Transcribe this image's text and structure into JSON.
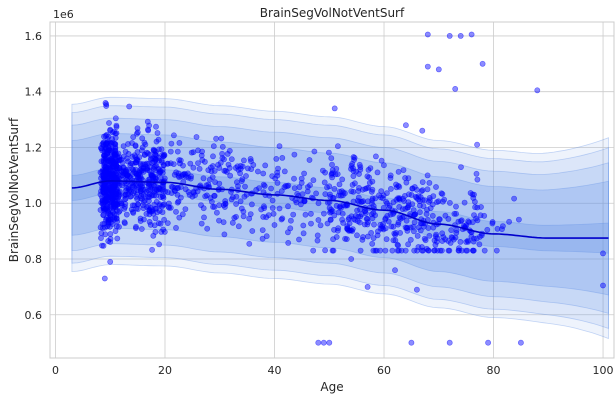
{
  "chart_data": {
    "type": "scatter",
    "title": "BrainSegVolNotVentSurf",
    "xlabel": "Age",
    "ylabel": "BrainSegVolNotVentSurf",
    "y_offset_label": "1e6",
    "xlim": [
      -1,
      102
    ],
    "ylim": [
      0.445,
      1.65
    ],
    "x_ticks": [
      0,
      20,
      40,
      60,
      80,
      100
    ],
    "y_ticks": [
      0.6,
      0.8,
      1.0,
      1.2,
      1.4,
      1.6
    ],
    "x_tick_labels": [
      "0",
      "20",
      "40",
      "60",
      "80",
      "100"
    ],
    "y_tick_labels": [
      "0.6",
      "0.8",
      "1.0",
      "1.2",
      "1.4",
      "1.6"
    ],
    "grid": true,
    "colors": {
      "points": "#0000ff",
      "mean_line": "#0000cc",
      "inner_band": "#6f9be8",
      "outer_band": "#bcd0f5"
    },
    "mean_curve": {
      "x": [
        3,
        10,
        20,
        30,
        40,
        50,
        60,
        70,
        80,
        90,
        95,
        101
      ],
      "y": [
        1.055,
        1.08,
        1.075,
        1.05,
        1.03,
        1.01,
        0.975,
        0.925,
        0.89,
        0.875,
        0.875,
        0.875
      ]
    },
    "band_offsets": [
      {
        "lower": -0.045,
        "upper": 0.045,
        "alpha": 0.35
      },
      {
        "lower": -0.17,
        "upper": 0.17,
        "alpha": 0.22
      },
      {
        "lower": -0.225,
        "upper": 0.225,
        "alpha": 0.16
      },
      {
        "lower": -0.27,
        "upper": 0.27,
        "alpha": 0.12
      },
      {
        "lower": -0.3,
        "upper": 0.3,
        "alpha": 0.1
      }
    ],
    "band_widening": {
      "start_x": 85,
      "extra_at_end": 0.06
    },
    "outliers": {
      "x": [
        68,
        72,
        74,
        76,
        78,
        68,
        70,
        73,
        88,
        64,
        67,
        77,
        48,
        49,
        50,
        51,
        65,
        72,
        79,
        85,
        100,
        100,
        9,
        10,
        54,
        57,
        62,
        66
      ],
      "y": [
        1.605,
        1.6,
        1.6,
        1.605,
        1.5,
        1.49,
        1.48,
        1.41,
        1.405,
        1.28,
        1.26,
        1.21,
        0.5,
        0.5,
        0.5,
        1.34,
        0.5,
        0.5,
        0.5,
        0.5,
        0.82,
        0.705,
        0.73,
        0.79,
        0.8,
        0.7,
        0.76,
        0.69
      ]
    },
    "cluster_spec": [
      {
        "x_min": 8,
        "x_max": 12,
        "n": 420,
        "spread": 0.09
      },
      {
        "x_min": 12,
        "x_max": 20,
        "n": 330,
        "spread": 0.085
      },
      {
        "x_min": 20,
        "x_max": 35,
        "n": 170,
        "spread": 0.08
      },
      {
        "x_min": 35,
        "x_max": 50,
        "n": 110,
        "spread": 0.08
      },
      {
        "x_min": 50,
        "x_max": 68,
        "n": 300,
        "spread": 0.085
      },
      {
        "x_min": 68,
        "x_max": 78,
        "n": 110,
        "spread": 0.08
      },
      {
        "x_min": 78,
        "x_max": 85,
        "n": 12,
        "spread": 0.06
      }
    ]
  }
}
